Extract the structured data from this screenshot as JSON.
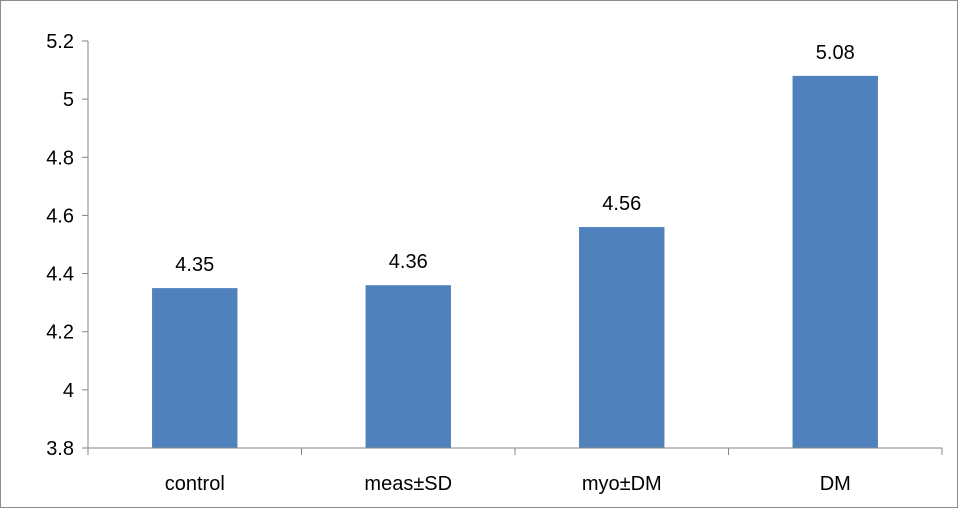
{
  "chart_data": {
    "type": "bar",
    "title": "",
    "xlabel": "",
    "ylabel": "",
    "categories": [
      "control",
      "meas±SD",
      "myo±DM",
      "DM"
    ],
    "values": [
      4.35,
      4.36,
      4.56,
      5.08
    ],
    "data_labels": [
      "4.35",
      "4.36",
      "4.56",
      "5.08"
    ],
    "ylim": [
      3.8,
      5.2
    ],
    "y_ticks": [
      3.8,
      4,
      4.2,
      4.4,
      4.6,
      4.8,
      5,
      5.2
    ],
    "y_tick_labels": [
      "3.8",
      "4",
      "4.2",
      "4.4",
      "4.6",
      "4.8",
      "5",
      "5.2"
    ],
    "grid": false,
    "legend": "none",
    "bar_color": "#4f81bd",
    "axis_color": "#868686"
  }
}
